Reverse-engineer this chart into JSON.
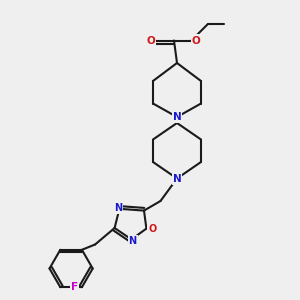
{
  "bg_color": "#efefef",
  "bond_color": "#1a1a1a",
  "N_color": "#1a1acc",
  "O_color": "#cc1a1a",
  "F_color": "#cc00cc",
  "lw": 1.5,
  "figsize": [
    3.0,
    3.0
  ],
  "dpi": 100,
  "xlim": [
    0,
    10
  ],
  "ylim": [
    0,
    10
  ]
}
